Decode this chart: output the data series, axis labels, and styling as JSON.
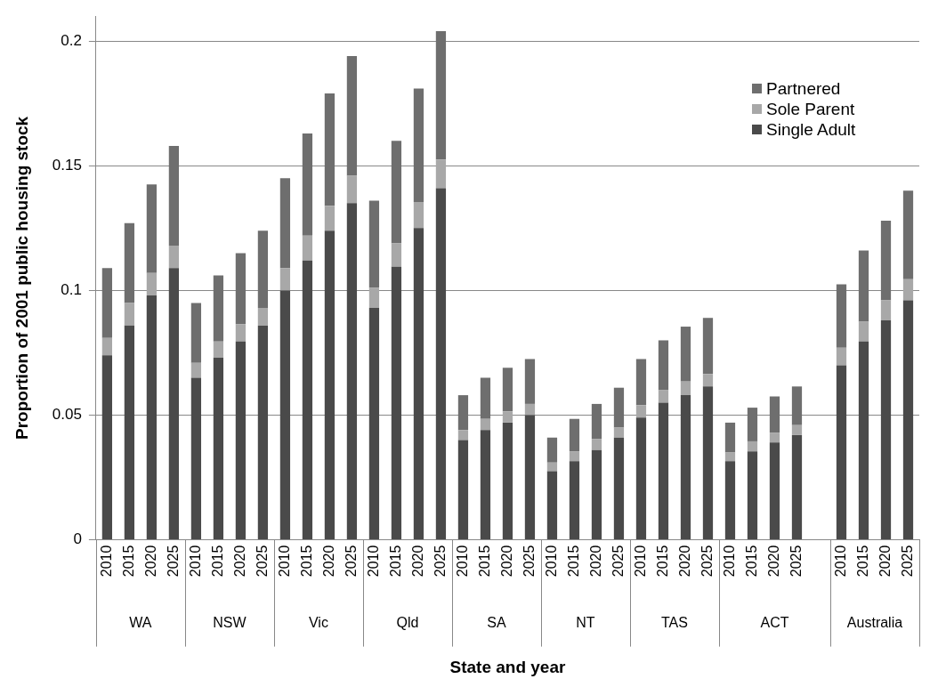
{
  "chart_data": {
    "type": "bar",
    "stacked": true,
    "xlabel": "State and year",
    "ylabel": "Proportion of 2001 public housing stock",
    "categories": [
      "2010",
      "2015",
      "2020",
      "2025",
      "2010",
      "2015",
      "2020",
      "2025",
      "2010",
      "2015",
      "2020",
      "2025",
      "2010",
      "2015",
      "2020",
      "2025",
      "2010",
      "2015",
      "2020",
      "2025",
      "2010",
      "2015",
      "2020",
      "2025",
      "2010",
      "2015",
      "2020",
      "2025",
      "2010",
      "2015",
      "2020",
      "2025",
      null,
      "2010",
      "2015",
      "2020",
      "2025"
    ],
    "annotations": [
      "WA",
      "NSW",
      "Vic",
      "Qld",
      "SA",
      "NT",
      "TAS",
      "ACT",
      "Australia"
    ],
    "series": [
      {
        "name": "Single Adult",
        "color": "#4a4a4a",
        "values": [
          0.074,
          0.086,
          0.098,
          0.109,
          0.065,
          0.073,
          0.0795,
          0.086,
          0.1,
          0.112,
          0.124,
          0.135,
          0.093,
          0.1095,
          0.125,
          0.141,
          0.04,
          0.044,
          0.047,
          0.05,
          0.0275,
          0.0315,
          0.036,
          0.041,
          0.049,
          0.055,
          0.058,
          0.0615,
          0.0315,
          0.0355,
          0.039,
          0.042,
          null,
          0.07,
          0.0795,
          0.088,
          0.096
        ]
      },
      {
        "name": "Sole Parent",
        "color": "#a8a8a8",
        "values": [
          0.007,
          0.009,
          0.009,
          0.009,
          0.006,
          0.0065,
          0.007,
          0.007,
          0.009,
          0.01,
          0.01,
          0.011,
          0.008,
          0.0095,
          0.0105,
          0.0115,
          0.004,
          0.0045,
          0.0045,
          0.0045,
          0.0035,
          0.004,
          0.0045,
          0.004,
          0.005,
          0.005,
          0.0055,
          0.005,
          0.0035,
          0.004,
          0.004,
          0.004,
          null,
          0.007,
          0.008,
          0.008,
          0.0085
        ]
      },
      {
        "name": "Partnered",
        "color": "#6e6e6e",
        "values": [
          0.028,
          0.032,
          0.0355,
          0.04,
          0.024,
          0.0265,
          0.0285,
          0.031,
          0.036,
          0.041,
          0.045,
          0.048,
          0.035,
          0.041,
          0.0455,
          0.0515,
          0.014,
          0.0165,
          0.0175,
          0.018,
          0.01,
          0.013,
          0.014,
          0.016,
          0.0185,
          0.02,
          0.022,
          0.0225,
          0.012,
          0.0135,
          0.0145,
          0.0155,
          null,
          0.0255,
          0.0285,
          0.032,
          0.0355
        ]
      }
    ],
    "ylim": [
      0,
      0.21
    ],
    "yticks": [
      {
        "value": 0,
        "label": "0"
      },
      0.05,
      {
        "value": 0.1,
        "label": "0.1"
      },
      0.15,
      {
        "value": 0.2,
        "label": "0.2"
      }
    ],
    "grid": "y",
    "legend": "top right"
  }
}
